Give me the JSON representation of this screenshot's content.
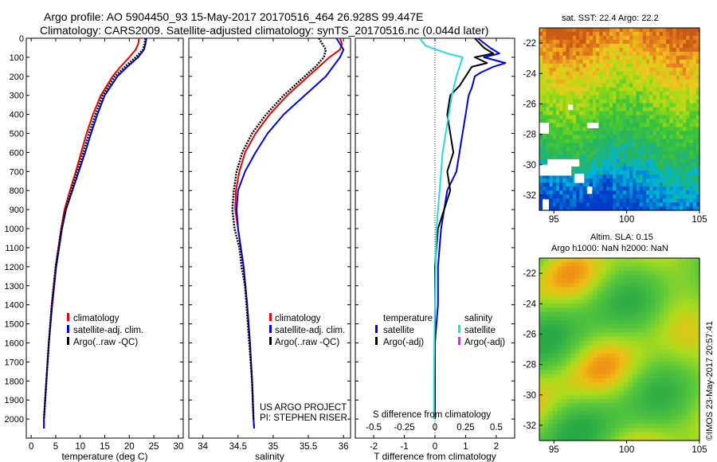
{
  "header": {
    "line1": "Argo profile: AO 5904450_93 15-May-2017 20170516_464 26.928S 99.447E",
    "line2": "Climatology: CARS2009. Satellite-adjusted climatology: synTS_20170516.nc (0.044d later)"
  },
  "colors": {
    "climatology": "#ee0000",
    "satellite": "#0000dd",
    "argo": "#000000",
    "sal_satellite": "#22dddd",
    "sal_argo": "#ee22ee"
  },
  "chart_data": [
    {
      "type": "line",
      "id": "temperature",
      "xlabel": "temperature (deg C)",
      "ylabel": "",
      "xlim": [
        -1,
        31
      ],
      "ylim": [
        2100,
        0
      ],
      "xticks": [
        0,
        5,
        10,
        15,
        20,
        25,
        30
      ],
      "yticks": [
        0,
        100,
        200,
        300,
        400,
        500,
        600,
        700,
        800,
        900,
        1000,
        1100,
        1200,
        1300,
        1400,
        1500,
        1600,
        1700,
        1800,
        1900,
        2000
      ],
      "legend": [
        "climatology",
        "satellite-adj. clim.",
        "Argo(..raw -QC)"
      ],
      "series": [
        {
          "name": "climatology",
          "color": "#ee0000",
          "depth": [
            0,
            30,
            60,
            100,
            150,
            200,
            300,
            400,
            500,
            600,
            700,
            800,
            900,
            1000,
            1200,
            1400,
            1600,
            1800,
            2000,
            2050
          ],
          "values": [
            22,
            21.8,
            21.3,
            20,
            18.2,
            16.6,
            14.2,
            12.6,
            11.3,
            10.2,
            9.1,
            7.9,
            6.8,
            6.1,
            5,
            4.2,
            3.6,
            3.1,
            2.6,
            2.6
          ]
        },
        {
          "name": "satellite-adj. clim.",
          "color": "#0000dd",
          "depth": [
            0,
            30,
            60,
            100,
            150,
            200,
            300,
            400,
            500,
            600,
            700,
            800,
            900,
            1000,
            1200,
            1400,
            1600,
            1800,
            2000,
            2050
          ],
          "values": [
            23.5,
            23.3,
            23,
            21.8,
            19.6,
            17.6,
            15,
            13.5,
            12.2,
            11,
            9.7,
            8.4,
            7.1,
            6.3,
            5.1,
            4.3,
            3.6,
            3.1,
            2.6,
            2.6
          ]
        },
        {
          "name": "Argo(..raw -QC)",
          "color": "#000000",
          "depth": [
            0,
            30,
            60,
            100,
            150,
            200,
            300,
            400,
            500,
            600,
            700,
            800,
            900,
            1000,
            1200,
            1400,
            1600,
            1800,
            2000
          ],
          "values": [
            23.3,
            23.1,
            22.8,
            21.3,
            19.1,
            17.1,
            14.6,
            13.1,
            11.8,
            10.6,
            9.4,
            8.2,
            7,
            6.2,
            5,
            4.2,
            3.6,
            3.1,
            2.6
          ]
        }
      ]
    },
    {
      "type": "line",
      "id": "salinity",
      "xlabel": "salinity",
      "xlim": [
        33.8,
        36.1
      ],
      "ylim": [
        2100,
        0
      ],
      "xticks": [
        34,
        34.5,
        35,
        35.5,
        36
      ],
      "legend": [
        "climatology",
        "satellite-adj. clim.",
        "Argo(..raw -QC)"
      ],
      "series": [
        {
          "name": "climatology",
          "color": "#ee0000",
          "depth": [
            0,
            30,
            60,
            100,
            150,
            200,
            300,
            400,
            500,
            600,
            700,
            800,
            900,
            1000,
            1200,
            1400,
            1600,
            1800,
            2000,
            2050
          ],
          "values": [
            35.95,
            35.98,
            35.95,
            35.8,
            35.65,
            35.5,
            35.2,
            34.95,
            34.75,
            34.6,
            34.52,
            34.47,
            34.46,
            34.5,
            34.58,
            34.63,
            34.67,
            34.7,
            34.72,
            34.73
          ]
        },
        {
          "name": "satellite-adj. clim.",
          "color": "#0000dd",
          "depth": [
            0,
            30,
            60,
            100,
            150,
            200,
            300,
            400,
            500,
            600,
            700,
            800,
            900,
            1000,
            1200,
            1400,
            1600,
            1800,
            2000,
            2050
          ],
          "values": [
            35.9,
            35.95,
            36,
            35.95,
            35.85,
            35.75,
            35.45,
            35.15,
            34.92,
            34.75,
            34.6,
            34.5,
            34.48,
            34.5,
            34.58,
            34.63,
            34.67,
            34.7,
            34.72,
            34.73
          ]
        },
        {
          "name": "Argo(..raw -QC)",
          "color": "#000000",
          "depth": [
            0,
            30,
            60,
            100,
            150,
            200,
            300,
            400,
            500,
            600,
            700,
            800,
            900,
            1000,
            1100,
            1200,
            1300,
            1400,
            1600,
            1800,
            2000
          ],
          "values": [
            35.65,
            35.7,
            35.75,
            35.72,
            35.6,
            35.45,
            35.15,
            34.9,
            34.7,
            34.56,
            34.48,
            34.44,
            34.42,
            34.45,
            34.52,
            34.55,
            34.6,
            34.62,
            34.66,
            34.7,
            34.72
          ]
        }
      ],
      "annotations": [
        "US ARGO PROJECT",
        "PI: STEPHEN RISER"
      ]
    },
    {
      "type": "line",
      "id": "difference",
      "xlabel": "T difference from climatology",
      "xlim": [
        -2.6,
        2.6
      ],
      "ylim": [
        2100,
        0
      ],
      "xticks": [
        -2,
        -1,
        0,
        1,
        2
      ],
      "secondary_xlabel": "S difference from climatology",
      "secondary_xticks": [
        "-0.5",
        "-0.25",
        "0",
        "0.25",
        "0.5"
      ],
      "legend_titles": [
        "temperature",
        "salinity"
      ],
      "legend": [
        "satellite",
        "Argo(-adj)",
        "satellite",
        "Argo(-adj)"
      ],
      "series": [
        {
          "name": "temperature satellite",
          "color": "#0000dd",
          "depth": [
            0,
            50,
            80,
            100,
            130,
            150,
            180,
            200,
            260,
            300,
            400,
            500,
            600,
            700,
            800,
            900,
            1000,
            1200,
            1400,
            1600,
            1800,
            2000
          ],
          "values": [
            1.4,
            1.8,
            2.1,
            1.6,
            2.3,
            1.9,
            1.5,
            1.3,
            1.2,
            1.1,
            1,
            0.9,
            0.8,
            0.7,
            0.4,
            0.3,
            0.2,
            0.1,
            0.1,
            0,
            0,
            0
          ]
        },
        {
          "name": "temperature Argo(-adj)",
          "color": "#000000",
          "depth": [
            0,
            50,
            80,
            100,
            130,
            150,
            200,
            250,
            300,
            400,
            500,
            600,
            700,
            800,
            900,
            1000,
            1200,
            1400,
            1600,
            1800,
            2000
          ],
          "values": [
            1.3,
            1.6,
            1.9,
            1.3,
            1.7,
            1.2,
            1,
            0.8,
            0.5,
            0.4,
            0.5,
            0.6,
            0.4,
            0.5,
            0.3,
            0.1,
            0,
            0,
            0,
            0,
            0
          ]
        },
        {
          "name": "salinity satellite",
          "color": "#22dddd",
          "depth": [
            0,
            40,
            80,
            100,
            150,
            200,
            300,
            400,
            500,
            600,
            700,
            800,
            900,
            1000,
            1200,
            1400,
            1600,
            1800,
            2000
          ],
          "values": [
            -0.5,
            -0.3,
            0.4,
            0.9,
            0.8,
            0.7,
            0.55,
            0.45,
            0.35,
            0.25,
            0.2,
            0.15,
            0.1,
            0.05,
            0.02,
            0,
            -0.02,
            -0.03,
            -0.03
          ]
        },
        {
          "name": "salinity Argo(-adj)",
          "color": "#ee22ee",
          "depth": [],
          "values": []
        }
      ]
    },
    {
      "type": "heatmap",
      "id": "sst_map",
      "title": "sat. SST: 22.4 Argo: 22.2",
      "xticks": [
        95,
        100,
        105
      ],
      "yticks": [
        -22,
        -24,
        -26,
        -28,
        -30,
        -32
      ],
      "xlim": [
        94,
        105
      ],
      "ylim": [
        -33,
        -21
      ]
    },
    {
      "type": "heatmap",
      "id": "sla_map",
      "title": "Altim. SLA: 0.15",
      "subtitle": "Argo h1000: NaN h2000: NaN",
      "xticks": [
        95,
        100,
        105
      ],
      "yticks": [
        -22,
        -24,
        -26,
        -28,
        -30,
        -32
      ],
      "xlim": [
        94,
        105
      ],
      "ylim": [
        -33,
        -21
      ]
    }
  ],
  "credit": "©IMOS 23-May-2017 20:57:41"
}
